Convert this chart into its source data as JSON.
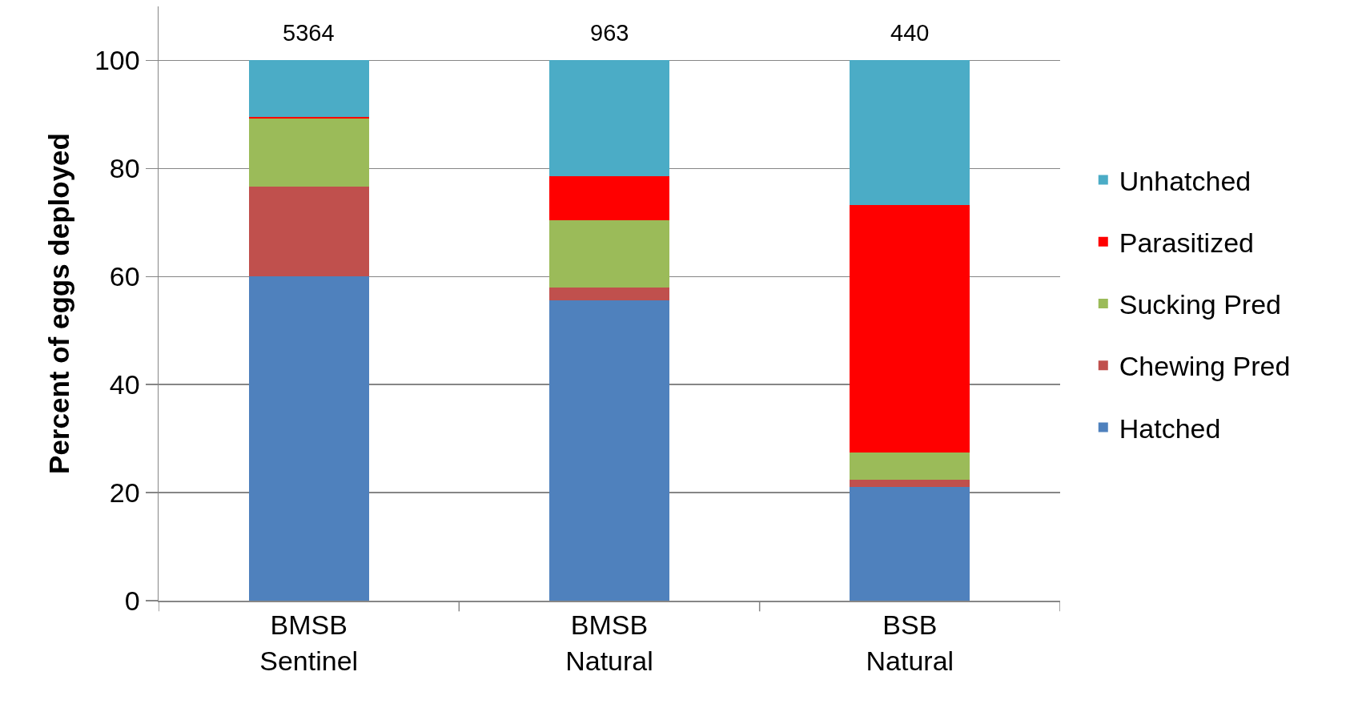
{
  "chart_data": {
    "type": "bar",
    "stacked": true,
    "categories": [
      "BMSB Sentinel",
      "BMSB Natural",
      "BSB Natural"
    ],
    "series": [
      {
        "name": "Hatched",
        "color": "#4f81bd",
        "values": [
          60.1,
          55.6,
          21.1
        ]
      },
      {
        "name": "Chewing Pred",
        "color": "#c0504d",
        "values": [
          16.5,
          2.3,
          1.3
        ]
      },
      {
        "name": "Sucking Pred",
        "color": "#9bbb59",
        "values": [
          12.7,
          12.5,
          5.0
        ]
      },
      {
        "name": "Parasitized",
        "color": "#ff0000",
        "values": [
          0.2,
          8.2,
          45.9
        ]
      },
      {
        "name": "Unhatched",
        "color": "#4bacc6",
        "values": [
          10.5,
          21.4,
          26.7
        ]
      }
    ],
    "annotations": [
      "5364",
      "963",
      "440"
    ],
    "ylabel": "Percent of eggs deployed",
    "ylim": [
      0,
      110
    ],
    "yticks": [
      0,
      20,
      40,
      60,
      80,
      100
    ],
    "grid": "y",
    "legend": "right"
  }
}
